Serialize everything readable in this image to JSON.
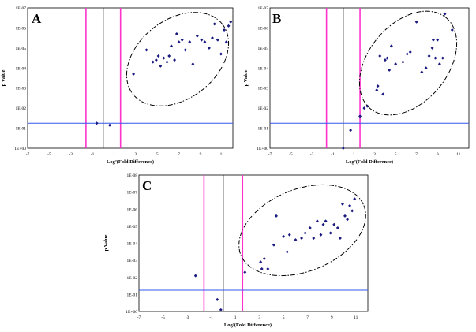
{
  "chart_data": [
    {
      "type": "scatter",
      "panel": "A",
      "xlabel": "Log²(Fold Difference)",
      "ylabel": "p Value",
      "xlim": [
        -7,
        12
      ],
      "ylim": [
        0,
        7
      ],
      "x_ticks": [
        "-7",
        "-5",
        "-3",
        "-1",
        "1",
        "3",
        "5",
        "7",
        "9",
        "11"
      ],
      "y_ticks": [
        "1E+00",
        "1E-01",
        "1E-02",
        "1E-03",
        "1E-04",
        "1E-05",
        "1E-06",
        "1E-07"
      ],
      "threshold_lines_x": [
        -1.6,
        1.6
      ],
      "center_line_x": 0,
      "threshold_line_y": 1.25,
      "points": [
        [
          -0.6,
          1.25
        ],
        [
          0.6,
          1.15
        ],
        [
          2.8,
          3.7
        ],
        [
          4.0,
          4.9
        ],
        [
          4.6,
          4.3
        ],
        [
          4.9,
          4.4
        ],
        [
          5.1,
          4.6
        ],
        [
          5.3,
          4.1
        ],
        [
          5.6,
          4.5
        ],
        [
          5.9,
          4.3
        ],
        [
          6.1,
          4.6
        ],
        [
          6.3,
          5.1
        ],
        [
          6.6,
          4.4
        ],
        [
          6.8,
          5.7
        ],
        [
          7.0,
          5.3
        ],
        [
          7.3,
          5.4
        ],
        [
          7.6,
          4.9
        ],
        [
          8.0,
          5.3
        ],
        [
          8.3,
          4.2
        ],
        [
          8.7,
          5.6
        ],
        [
          9.1,
          5.4
        ],
        [
          9.4,
          5.3
        ],
        [
          9.8,
          5.0
        ],
        [
          10.1,
          5.5
        ],
        [
          10.3,
          6.2
        ],
        [
          10.6,
          5.4
        ],
        [
          10.9,
          4.7
        ],
        [
          11.2,
          5.9
        ],
        [
          11.4,
          5.3
        ],
        [
          11.6,
          6.1
        ],
        [
          11.8,
          6.3
        ]
      ]
    },
    {
      "type": "scatter",
      "panel": "B",
      "xlabel": "Log²(Fold Difference)",
      "ylabel": "p Value",
      "xlim": [
        -7,
        12
      ],
      "ylim": [
        0,
        7
      ],
      "x_ticks": [
        "-7",
        "-5",
        "-3",
        "-1",
        "1",
        "3",
        "5",
        "7",
        "9",
        "11"
      ],
      "y_ticks": [
        "1E+00",
        "1E-01",
        "1E-02",
        "1E-03",
        "1E-04",
        "1E-05",
        "1E-06",
        "1E-07"
      ],
      "threshold_lines_x": [
        -1.6,
        1.6
      ],
      "center_line_x": 0,
      "threshold_line_y": 1.25,
      "points": [
        [
          0.0,
          0.0
        ],
        [
          0.7,
          0.9
        ],
        [
          1.6,
          1.6
        ],
        [
          2.0,
          2.0
        ],
        [
          2.3,
          2.1
        ],
        [
          3.2,
          2.9
        ],
        [
          3.3,
          3.1
        ],
        [
          3.5,
          4.6
        ],
        [
          3.8,
          2.7
        ],
        [
          4.0,
          4.4
        ],
        [
          4.2,
          4.5
        ],
        [
          4.4,
          3.9
        ],
        [
          4.6,
          5.1
        ],
        [
          5.0,
          4.2
        ],
        [
          5.7,
          4.3
        ],
        [
          6.1,
          4.7
        ],
        [
          6.4,
          4.8
        ],
        [
          7.0,
          6.3
        ],
        [
          7.5,
          3.8
        ],
        [
          7.9,
          4.0
        ],
        [
          8.2,
          4.6
        ],
        [
          8.5,
          5.0
        ],
        [
          8.6,
          5.4
        ],
        [
          8.8,
          4.5
        ],
        [
          9.0,
          5.4
        ],
        [
          9.2,
          4.2
        ],
        [
          9.5,
          4.5
        ],
        [
          9.7,
          6.7
        ],
        [
          10.4,
          5.9
        ]
      ]
    },
    {
      "type": "scatter",
      "panel": "C",
      "xlabel": "Log²(Fold Difference)",
      "ylabel": "p Value",
      "xlim": [
        -7,
        12
      ],
      "ylim": [
        0,
        8
      ],
      "x_ticks": [
        "-7",
        "-5",
        "-3",
        "-1",
        "1",
        "3",
        "5",
        "7",
        "9",
        "11"
      ],
      "y_ticks": [
        "1E+00",
        "1E-01",
        "1E-02",
        "1E-03",
        "1E-04",
        "1E-05",
        "1E-06",
        "1E-07",
        "1E-08"
      ],
      "threshold_lines_x": [
        -1.6,
        1.6
      ],
      "center_line_x": 0,
      "threshold_line_y": 1.25,
      "points": [
        [
          -2.3,
          2.1
        ],
        [
          -0.5,
          0.7
        ],
        [
          -0.2,
          0.1
        ],
        [
          1.8,
          2.3
        ],
        [
          3.1,
          2.9
        ],
        [
          3.2,
          2.5
        ],
        [
          3.4,
          3.1
        ],
        [
          3.7,
          2.5
        ],
        [
          4.2,
          3.9
        ],
        [
          4.4,
          5.6
        ],
        [
          5.0,
          4.4
        ],
        [
          5.3,
          3.5
        ],
        [
          5.5,
          4.5
        ],
        [
          6.0,
          4.2
        ],
        [
          6.5,
          4.3
        ],
        [
          6.8,
          4.6
        ],
        [
          7.2,
          4.9
        ],
        [
          7.5,
          4.3
        ],
        [
          7.8,
          5.3
        ],
        [
          8.1,
          4.5
        ],
        [
          8.3,
          5.1
        ],
        [
          8.5,
          5.3
        ],
        [
          8.9,
          4.6
        ],
        [
          9.2,
          5.1
        ],
        [
          9.5,
          4.9
        ],
        [
          9.7,
          4.3
        ],
        [
          9.9,
          6.3
        ],
        [
          10.1,
          5.6
        ],
        [
          10.3,
          5.4
        ],
        [
          10.5,
          6.2
        ],
        [
          10.7,
          5.9
        ],
        [
          10.9,
          6.6
        ]
      ]
    }
  ]
}
